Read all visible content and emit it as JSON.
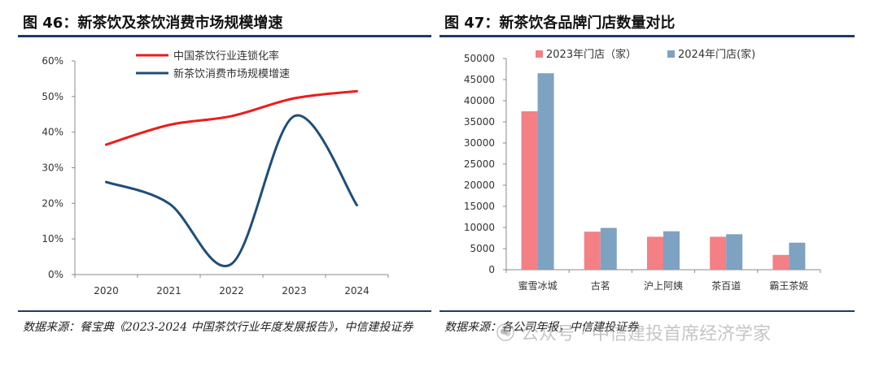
{
  "left_panel": {
    "title": "图 46：新茶饮及茶饮消费市场规模增速",
    "source": "数据来源：餐宝典《2023-2024 中国茶饮行业年度发展报告》，中信建投证券"
  },
  "right_panel": {
    "title": "图 47：新茶饮各品牌门店数量对比",
    "source": "数据来源：各公司年报，中信建投证券"
  },
  "watermark": {
    "text": "公众号 · 中信建投首席经济学家",
    "icon": "wechat-icon"
  },
  "colors": {
    "red": "#ee1c1c",
    "navy": "#1f4e79",
    "pink": "#f47f85",
    "steel": "#7ea2c1",
    "rule": "#1f3b63"
  },
  "chart_data": [
    {
      "type": "line",
      "x": [
        "2020",
        "2021",
        "2022",
        "2023",
        "2024"
      ],
      "ylim": [
        0,
        60
      ],
      "yticks": [
        "0%",
        "10%",
        "20%",
        "30%",
        "40%",
        "50%",
        "60%"
      ],
      "grid": false,
      "legend_position": "top-center",
      "series": [
        {
          "name": "中国茶饮行业连锁化率",
          "values": [
            36.5,
            42,
            44.5,
            49.5,
            51.5
          ],
          "color": "#ee1c1c"
        },
        {
          "name": "新茶饮消费市场规模增速",
          "values": [
            26,
            20,
            3,
            44.5,
            19.5
          ],
          "color": "#1f4e79"
        }
      ]
    },
    {
      "type": "bar",
      "categories": [
        "蜜雪冰城",
        "古茗",
        "沪上阿姨",
        "茶百道",
        "霸王茶姬"
      ],
      "ylim": [
        0,
        50000
      ],
      "yticks": [
        "0",
        "5000",
        "10000",
        "15000",
        "20000",
        "25000",
        "30000",
        "35000",
        "40000",
        "45000",
        "50000"
      ],
      "grid": false,
      "legend_position": "top-center",
      "series": [
        {
          "name": "2023年门店（家）",
          "values": [
            37500,
            9000,
            7800,
            7800,
            3500
          ],
          "color": "#f47f85"
        },
        {
          "name": "2024年门店(家)",
          "values": [
            46500,
            9900,
            9100,
            8400,
            6400
          ],
          "color": "#7ea2c1"
        }
      ]
    }
  ]
}
